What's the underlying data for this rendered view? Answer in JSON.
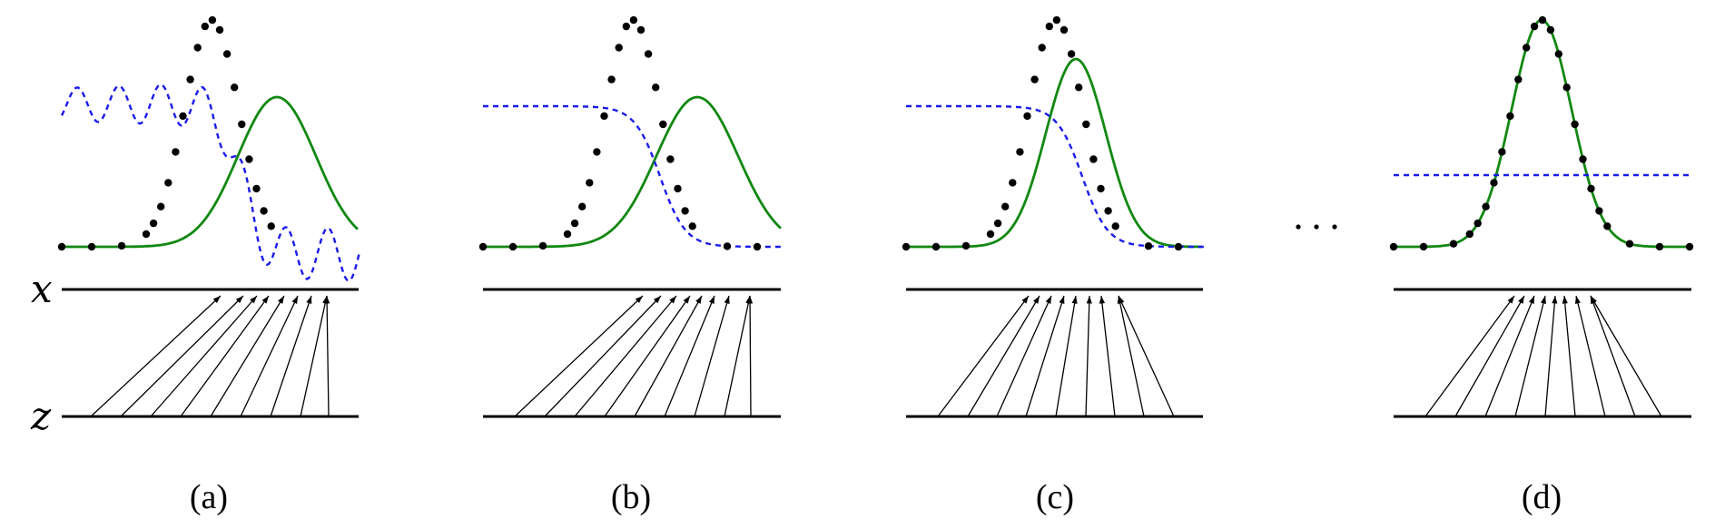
{
  "figure": {
    "axis_labels": {
      "x": "x",
      "z": "z"
    },
    "ellipsis": "...",
    "colors": {
      "data_distribution": "#000000",
      "generative_distribution": "#118811",
      "discriminator": "#1a1aee",
      "mapping_arrows": "#000000",
      "axis_lines": "#000000"
    },
    "panels": [
      {
        "id": "a",
        "caption": "(a)",
        "discriminator_style": "oscillating"
      },
      {
        "id": "b",
        "caption": "(b)",
        "discriminator_style": "sigmoid"
      },
      {
        "id": "c",
        "caption": "(c)",
        "discriminator_style": "sigmoid"
      },
      {
        "id": "d",
        "caption": "(d)",
        "discriminator_style": "constant-half"
      }
    ]
  }
}
